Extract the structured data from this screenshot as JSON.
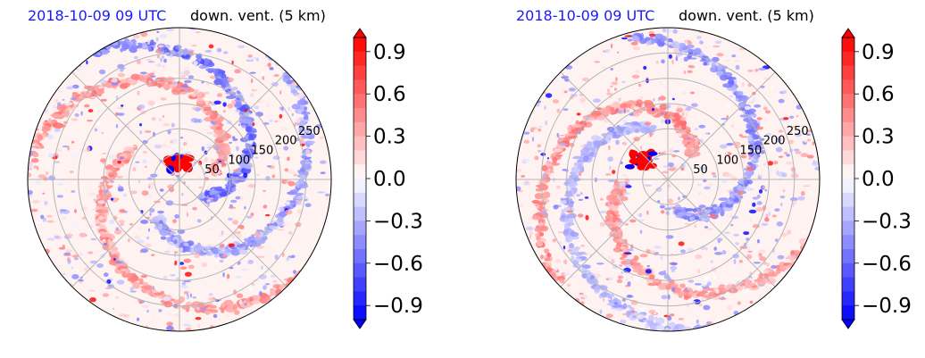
{
  "chart_data": [
    {
      "type": "heatmap",
      "projection": "polar",
      "title_left": "2018-10-09 09 UTC",
      "title_right": "down. vent. (5 km)",
      "radial_ticks": [
        50,
        100,
        150,
        200,
        250
      ],
      "radial_max": 300,
      "colorbar": {
        "min": -1.0,
        "max": 1.0,
        "ticks": [
          "0.9",
          "0.6",
          "0.3",
          "0.0",
          "−0.3",
          "−0.6",
          "−0.9"
        ],
        "cmap": "bwr",
        "extend": "both"
      },
      "grid": true
    },
    {
      "type": "heatmap",
      "projection": "polar",
      "title_left": "2018-10-09 09 UTC",
      "title_right": "down. vent. (5 km)",
      "radial_ticks": [
        50,
        100,
        150,
        200,
        250
      ],
      "radial_max": 300,
      "colorbar": {
        "min": -1.0,
        "max": 1.0,
        "ticks": [
          "0.9",
          "0.6",
          "0.3",
          "0.0",
          "−0.3",
          "−0.6",
          "−0.9"
        ],
        "cmap": "bwr",
        "extend": "both"
      },
      "grid": true
    }
  ],
  "colors": {
    "title_date": "#1a1aff",
    "grid": "#b5b5b5",
    "neg_strong": "#0000ff",
    "pos_strong": "#ff0000"
  }
}
